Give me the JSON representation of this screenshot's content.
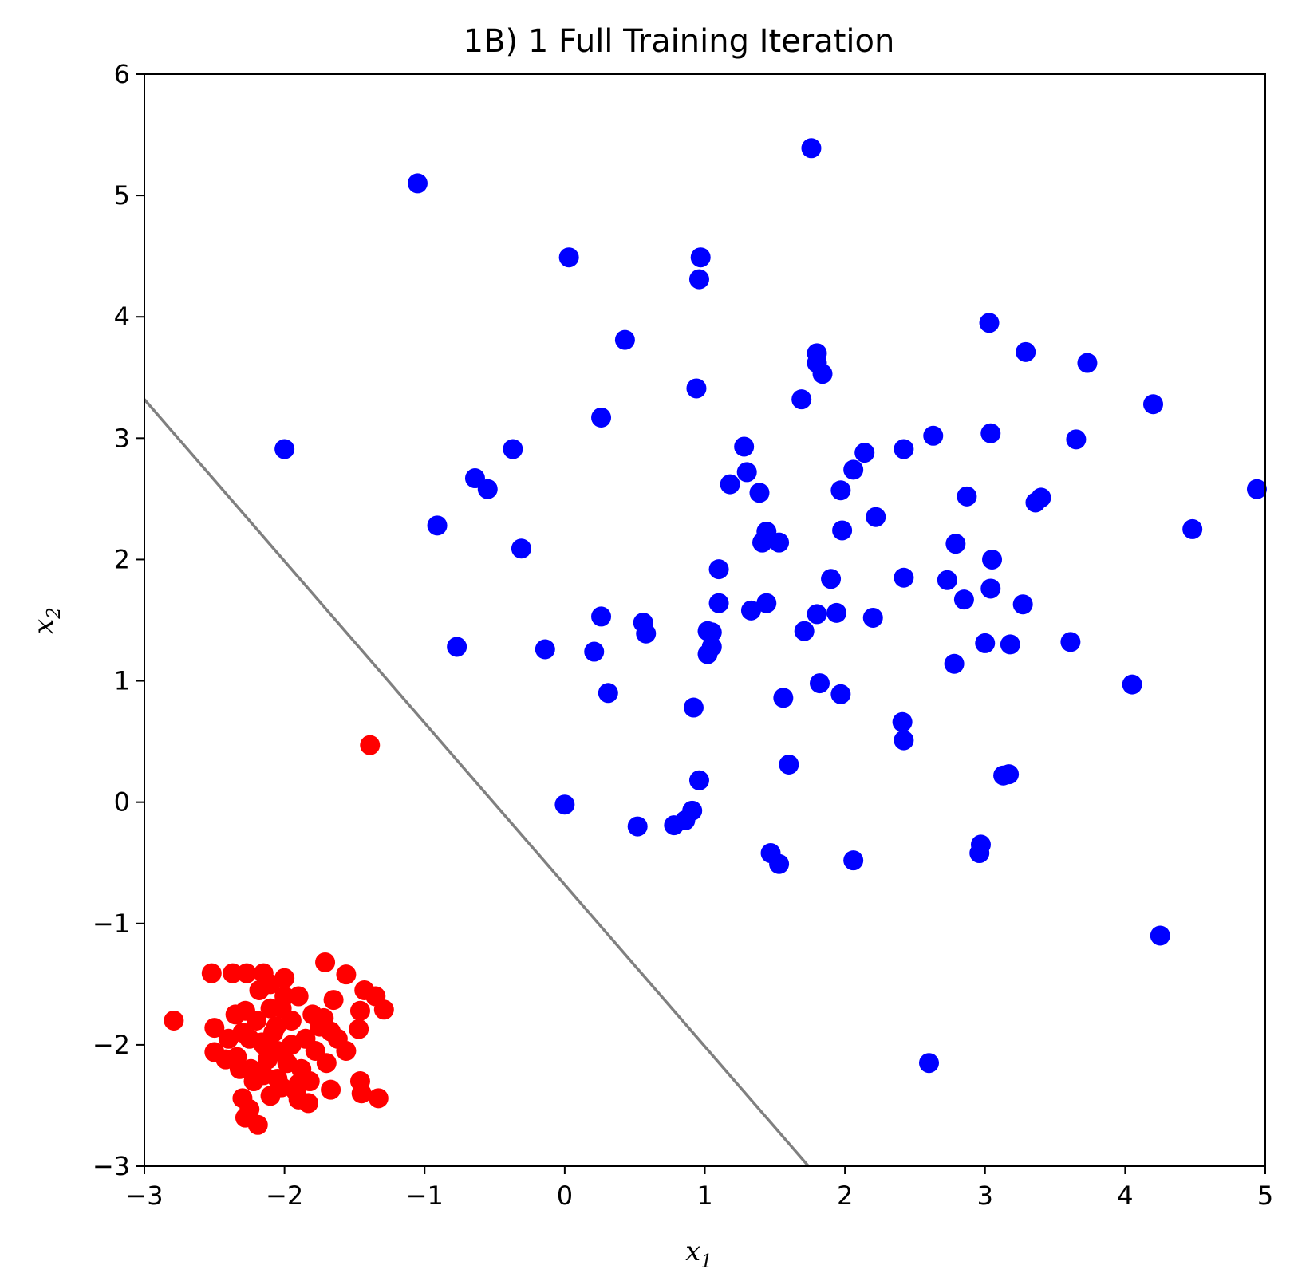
{
  "chart_data": {
    "type": "scatter",
    "title": "1B) 1 Full Training Iteration",
    "xlabel": "x",
    "xlabel_sub": "1",
    "ylabel": "x",
    "ylabel_sub": "2",
    "xlim": [
      -3,
      5
    ],
    "ylim": [
      -3,
      6
    ],
    "xticks": [
      -3,
      -2,
      -1,
      0,
      1,
      2,
      3,
      4,
      5
    ],
    "yticks": [
      -3,
      -2,
      -1,
      0,
      1,
      2,
      3,
      4,
      5,
      6
    ],
    "xtick_labels": [
      "−3",
      "−2",
      "−1",
      "0",
      "1",
      "2",
      "3",
      "4",
      "5"
    ],
    "ytick_labels": [
      "−3",
      "−2",
      "−1",
      "0",
      "1",
      "2",
      "3",
      "4",
      "5",
      "6"
    ],
    "grid": false,
    "decision_boundary": {
      "color": "#808080",
      "points": [
        [
          -3,
          3.32
        ],
        [
          1.74,
          -3
        ]
      ]
    },
    "series": [
      {
        "color": "#0000ff",
        "points": [
          [
            -1.05,
            5.1
          ],
          [
            1.76,
            5.39
          ],
          [
            0.03,
            4.49
          ],
          [
            0.97,
            4.49
          ],
          [
            0.96,
            4.31
          ],
          [
            0.43,
            3.81
          ],
          [
            1.8,
            3.7
          ],
          [
            1.8,
            3.62
          ],
          [
            1.84,
            3.53
          ],
          [
            0.94,
            3.41
          ],
          [
            1.69,
            3.32
          ],
          [
            3.03,
            3.95
          ],
          [
            3.29,
            3.71
          ],
          [
            3.73,
            3.62
          ],
          [
            4.2,
            3.28
          ],
          [
            -2.0,
            2.91
          ],
          [
            0.26,
            3.17
          ],
          [
            -0.37,
            2.91
          ],
          [
            1.28,
            2.93
          ],
          [
            2.63,
            3.02
          ],
          [
            3.04,
            3.04
          ],
          [
            3.65,
            2.99
          ],
          [
            2.14,
            2.88
          ],
          [
            2.42,
            2.91
          ],
          [
            1.3,
            2.72
          ],
          [
            2.06,
            2.74
          ],
          [
            -0.64,
            2.67
          ],
          [
            -0.55,
            2.58
          ],
          [
            1.18,
            2.62
          ],
          [
            1.39,
            2.55
          ],
          [
            1.97,
            2.57
          ],
          [
            2.87,
            2.52
          ],
          [
            3.36,
            2.47
          ],
          [
            3.4,
            2.51
          ],
          [
            4.94,
            2.58
          ],
          [
            -0.91,
            2.28
          ],
          [
            2.22,
            2.35
          ],
          [
            1.44,
            2.23
          ],
          [
            1.98,
            2.24
          ],
          [
            4.48,
            2.25
          ],
          [
            -0.31,
            2.09
          ],
          [
            1.41,
            2.14
          ],
          [
            1.53,
            2.14
          ],
          [
            2.79,
            2.13
          ],
          [
            3.05,
            2.0
          ],
          [
            1.1,
            1.92
          ],
          [
            1.9,
            1.84
          ],
          [
            2.42,
            1.85
          ],
          [
            2.73,
            1.83
          ],
          [
            3.04,
            1.76
          ],
          [
            2.85,
            1.67
          ],
          [
            1.1,
            1.64
          ],
          [
            1.44,
            1.64
          ],
          [
            3.27,
            1.63
          ],
          [
            1.33,
            1.58
          ],
          [
            1.8,
            1.55
          ],
          [
            1.94,
            1.56
          ],
          [
            0.26,
            1.53
          ],
          [
            2.2,
            1.52
          ],
          [
            0.56,
            1.48
          ],
          [
            1.02,
            1.41
          ],
          [
            1.05,
            1.4
          ],
          [
            1.71,
            1.41
          ],
          [
            0.58,
            1.39
          ],
          [
            -0.77,
            1.28
          ],
          [
            -0.14,
            1.26
          ],
          [
            0.21,
            1.24
          ],
          [
            1.05,
            1.28
          ],
          [
            1.02,
            1.22
          ],
          [
            3.0,
            1.31
          ],
          [
            3.18,
            1.3
          ],
          [
            3.61,
            1.32
          ],
          [
            2.78,
            1.14
          ],
          [
            1.82,
            0.98
          ],
          [
            4.05,
            0.97
          ],
          [
            0.31,
            0.9
          ],
          [
            1.97,
            0.89
          ],
          [
            1.56,
            0.86
          ],
          [
            0.92,
            0.78
          ],
          [
            2.41,
            0.66
          ],
          [
            2.42,
            0.51
          ],
          [
            1.6,
            0.31
          ],
          [
            3.13,
            0.22
          ],
          [
            3.17,
            0.23
          ],
          [
            0.96,
            0.18
          ],
          [
            0.0,
            -0.02
          ],
          [
            0.91,
            -0.07
          ],
          [
            0.86,
            -0.15
          ],
          [
            0.78,
            -0.19
          ],
          [
            0.52,
            -0.2
          ],
          [
            2.97,
            -0.35
          ],
          [
            2.96,
            -0.42
          ],
          [
            1.47,
            -0.42
          ],
          [
            1.53,
            -0.51
          ],
          [
            2.06,
            -0.48
          ],
          [
            4.25,
            -1.1
          ],
          [
            2.6,
            -2.15
          ]
        ]
      },
      {
        "color": "#ff0000",
        "points": [
          [
            -1.39,
            0.47
          ],
          [
            -2.79,
            -1.8
          ],
          [
            -2.52,
            -1.41
          ],
          [
            -2.37,
            -1.41
          ],
          [
            -2.27,
            -1.41
          ],
          [
            -2.15,
            -1.41
          ],
          [
            -2.0,
            -1.45
          ],
          [
            -1.71,
            -1.32
          ],
          [
            -1.56,
            -1.42
          ],
          [
            -1.43,
            -1.55
          ],
          [
            -1.35,
            -1.6
          ],
          [
            -1.29,
            -1.71
          ],
          [
            -1.46,
            -1.72
          ],
          [
            -1.65,
            -1.63
          ],
          [
            -2.5,
            -1.86
          ],
          [
            -2.5,
            -2.06
          ],
          [
            -2.42,
            -2.12
          ],
          [
            -1.67,
            -1.89
          ],
          [
            -1.47,
            -1.87
          ],
          [
            -1.56,
            -2.05
          ],
          [
            -1.67,
            -2.37
          ],
          [
            -1.46,
            -2.3
          ],
          [
            -1.45,
            -2.4
          ],
          [
            -1.33,
            -2.44
          ],
          [
            -1.83,
            -2.48
          ],
          [
            -1.9,
            -2.45
          ],
          [
            -2.3,
            -2.44
          ],
          [
            -2.25,
            -2.53
          ],
          [
            -2.28,
            -2.6
          ],
          [
            -2.19,
            -2.66
          ],
          [
            -2.1,
            -2.42
          ],
          [
            -2.02,
            -2.35
          ],
          [
            -1.9,
            -2.32
          ],
          [
            -2.05,
            -2.28
          ],
          [
            -2.15,
            -2.25
          ],
          [
            -2.24,
            -2.2
          ],
          [
            -2.34,
            -2.1
          ],
          [
            -2.3,
            -1.9
          ],
          [
            -2.2,
            -1.8
          ],
          [
            -2.1,
            -1.7
          ],
          [
            -2.0,
            -1.6
          ],
          [
            -1.9,
            -1.6
          ],
          [
            -1.8,
            -1.75
          ],
          [
            -1.75,
            -1.85
          ],
          [
            -1.85,
            -1.95
          ],
          [
            -1.95,
            -2.0
          ],
          [
            -2.05,
            -2.05
          ],
          [
            -2.15,
            -2.0
          ],
          [
            -2.25,
            -1.95
          ],
          [
            -2.35,
            -1.75
          ],
          [
            -2.18,
            -1.55
          ],
          [
            -2.08,
            -1.9
          ],
          [
            -1.98,
            -2.15
          ],
          [
            -1.88,
            -2.2
          ],
          [
            -1.78,
            -2.05
          ],
          [
            -1.7,
            -2.15
          ],
          [
            -2.12,
            -2.12
          ],
          [
            -2.22,
            -2.3
          ],
          [
            -1.95,
            -1.8
          ],
          [
            -2.28,
            -1.72
          ],
          [
            -2.4,
            -1.95
          ],
          [
            -2.02,
            -1.7
          ],
          [
            -1.82,
            -2.3
          ],
          [
            -2.1,
            -1.5
          ],
          [
            -1.62,
            -1.95
          ],
          [
            -1.72,
            -1.78
          ],
          [
            -2.32,
            -2.2
          ],
          [
            -1.92,
            -2.38
          ],
          [
            -2.06,
            -1.85
          ],
          [
            -2.16,
            -1.98
          ]
        ]
      }
    ]
  }
}
